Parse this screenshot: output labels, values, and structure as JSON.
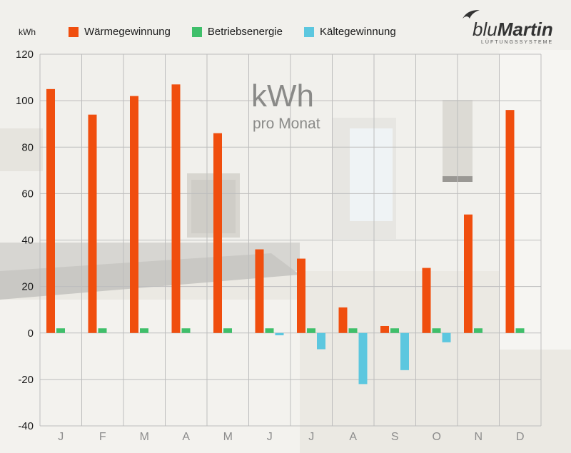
{
  "header": {
    "unit": "kWh",
    "logo_brand_light": "blu",
    "logo_brand_bold": "Martin",
    "logo_subtitle": "LÜFTUNGSSYSTEME"
  },
  "overlay": {
    "title": "kWh",
    "subtitle": "pro Monat"
  },
  "colors": {
    "waerme": "#f04e0e",
    "betrieb": "#3fbf6a",
    "kaelte": "#5cc7df",
    "grid": "#bdbdbd",
    "axis_text": "#1a1a1a",
    "month_text": "#8c8c8c"
  },
  "chart_data": {
    "type": "bar",
    "categories": [
      "J",
      "F",
      "M",
      "A",
      "M",
      "J",
      "J",
      "A",
      "S",
      "O",
      "N",
      "D"
    ],
    "series": [
      {
        "name": "Wärmegewinnung",
        "color": "#f04e0e",
        "values": [
          105,
          94,
          102,
          107,
          86,
          36,
          32,
          11,
          3,
          28,
          51,
          96
        ]
      },
      {
        "name": "Betriebsenergie",
        "color": "#3fbf6a",
        "values": [
          2,
          2,
          2,
          2,
          2,
          2,
          2,
          2,
          2,
          2,
          2,
          2
        ]
      },
      {
        "name": "Kältegewinnung",
        "color": "#5cc7df",
        "values": [
          0,
          0,
          0,
          0,
          0,
          -1,
          -7,
          -22,
          -16,
          -4,
          0,
          0
        ]
      }
    ],
    "ylabel": "kWh",
    "ylim": [
      -40,
      120
    ],
    "yticks": [
      120,
      100,
      80,
      60,
      40,
      20,
      0,
      -20,
      -40
    ],
    "grid": true,
    "legend_position": "top"
  }
}
